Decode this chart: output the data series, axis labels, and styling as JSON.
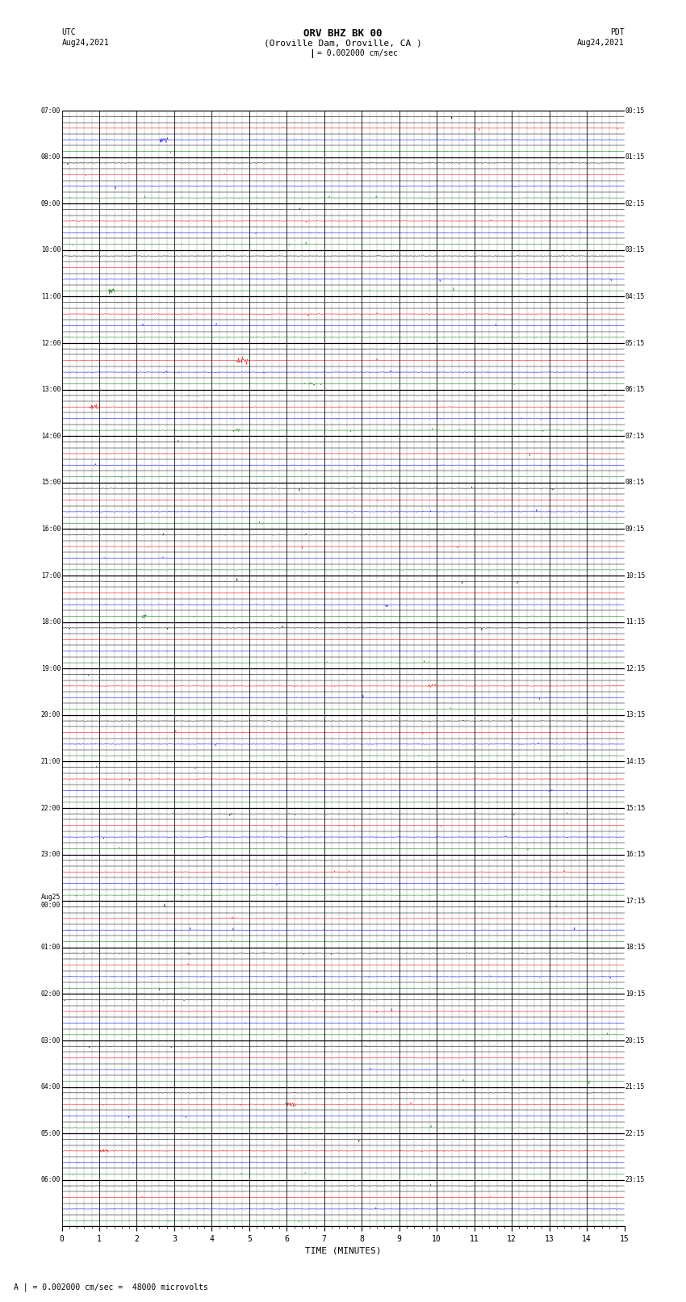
{
  "title_line1": "ORV BHZ BK 00",
  "title_line2": "(Oroville Dam, Oroville, CA )",
  "title_line3": "I = 0.002000 cm/sec",
  "left_header_line1": "UTC",
  "left_header_line2": "Aug24,2021",
  "right_header_line1": "PDT",
  "right_header_line2": "Aug24,2021",
  "footer_text": "A | = 0.002000 cm/sec =  48000 microvolts",
  "xlabel": "TIME (MINUTES)",
  "xmin": 0,
  "xmax": 15,
  "xticks": [
    0,
    1,
    2,
    3,
    4,
    5,
    6,
    7,
    8,
    9,
    10,
    11,
    12,
    13,
    14,
    15
  ],
  "left_times_utc": [
    "07:00",
    "",
    "",
    "",
    "08:00",
    "",
    "",
    "",
    "09:00",
    "",
    "",
    "",
    "10:00",
    "",
    "",
    "",
    "11:00",
    "",
    "",
    "",
    "12:00",
    "",
    "",
    "",
    "13:00",
    "",
    "",
    "",
    "14:00",
    "",
    "",
    "",
    "15:00",
    "",
    "",
    "",
    "16:00",
    "",
    "",
    "",
    "17:00",
    "",
    "",
    "",
    "18:00",
    "",
    "",
    "",
    "19:00",
    "",
    "",
    "",
    "20:00",
    "",
    "",
    "",
    "21:00",
    "",
    "",
    "",
    "22:00",
    "",
    "",
    "",
    "23:00",
    "",
    "",
    "",
    "Aug25\n00:00",
    "",
    "",
    "",
    "01:00",
    "",
    "",
    "",
    "02:00",
    "",
    "",
    "",
    "03:00",
    "",
    "",
    "",
    "04:00",
    "",
    "",
    "",
    "05:00",
    "",
    "",
    "",
    "06:00",
    "",
    "",
    ""
  ],
  "right_times_pdt": [
    "00:15",
    "",
    "",
    "",
    "01:15",
    "",
    "",
    "",
    "02:15",
    "",
    "",
    "",
    "03:15",
    "",
    "",
    "",
    "04:15",
    "",
    "",
    "",
    "05:15",
    "",
    "",
    "",
    "06:15",
    "",
    "",
    "",
    "07:15",
    "",
    "",
    "",
    "08:15",
    "",
    "",
    "",
    "09:15",
    "",
    "",
    "",
    "10:15",
    "",
    "",
    "",
    "11:15",
    "",
    "",
    "",
    "12:15",
    "",
    "",
    "",
    "13:15",
    "",
    "",
    "",
    "14:15",
    "",
    "",
    "",
    "15:15",
    "",
    "",
    "",
    "16:15",
    "",
    "",
    "",
    "17:15",
    "",
    "",
    "",
    "18:15",
    "",
    "",
    "",
    "19:15",
    "",
    "",
    "",
    "20:15",
    "",
    "",
    "",
    "21:15",
    "",
    "",
    "",
    "22:15",
    "",
    "",
    "",
    "23:15",
    "",
    "",
    ""
  ],
  "n_rows": 96,
  "row_colors": [
    "#000000",
    "#ff0000",
    "#0000ff",
    "#008000"
  ],
  "background_color": "#ffffff",
  "grid_color": "#000000",
  "noise_amplitude": 0.012,
  "spike_amplitude": 0.1,
  "spike_prob": 0.003
}
